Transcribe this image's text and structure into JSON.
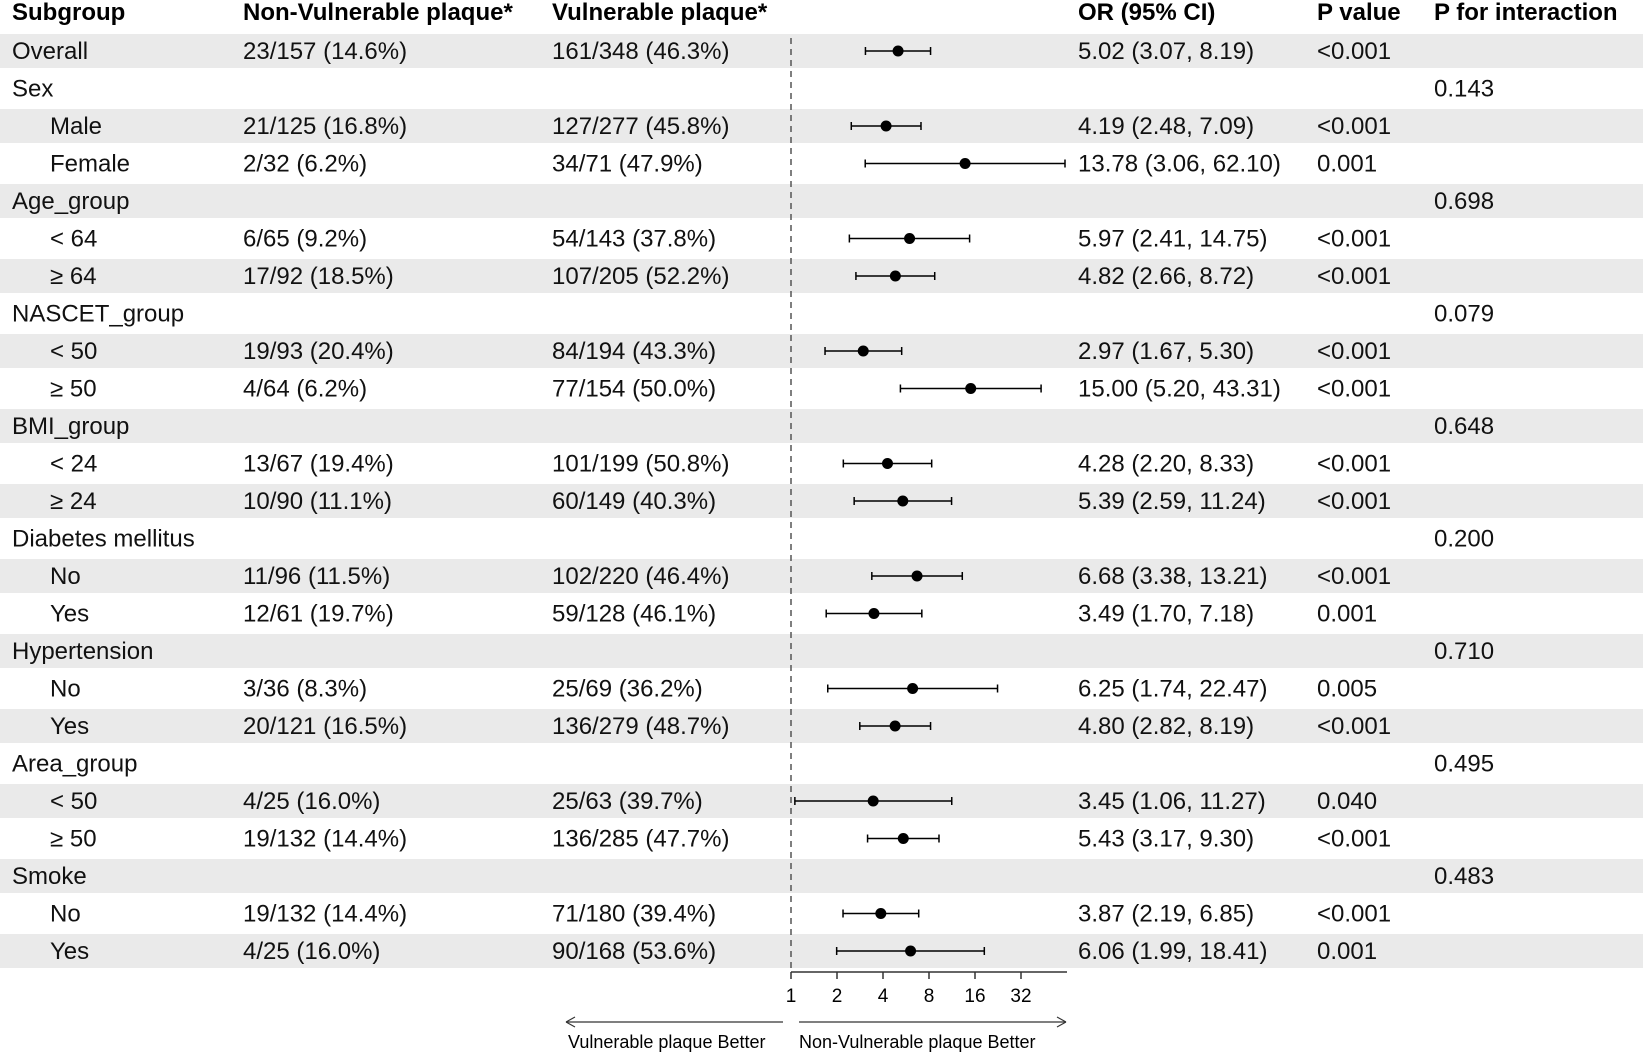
{
  "chart_data": {
    "type": "forest",
    "headers": {
      "subgroup": "Subgroup",
      "non_vulnerable": "Non-Vulnerable plaque*",
      "vulnerable": "Vulnerable plaque*",
      "or_ci": "OR (95% CI)",
      "p_value": "P value",
      "p_interaction": "P for interaction"
    },
    "rows": [
      {
        "label": "Overall",
        "indent": false,
        "nonvul": "23/157 (14.6%)",
        "vul": "161/348 (46.3%)",
        "or": 5.02,
        "lo": 3.07,
        "hi": 8.19,
        "or_text": "5.02 (3.07, 8.19)",
        "p": "<0.001",
        "p_int": ""
      },
      {
        "label": "Sex",
        "indent": false,
        "p_int": "0.143"
      },
      {
        "label": "Male",
        "indent": true,
        "nonvul": "21/125 (16.8%)",
        "vul": "127/277 (45.8%)",
        "or": 4.19,
        "lo": 2.48,
        "hi": 7.09,
        "or_text": "4.19 (2.48, 7.09)",
        "p": "<0.001",
        "p_int": ""
      },
      {
        "label": "Female",
        "indent": true,
        "nonvul": "2/32 (6.2%)",
        "vul": "34/71 (47.9%)",
        "or": 13.78,
        "lo": 3.06,
        "hi": 62.1,
        "or_text": "13.78 (3.06, 62.10)",
        "p": "0.001",
        "p_int": ""
      },
      {
        "label": "Age_group",
        "indent": false,
        "p_int": "0.698"
      },
      {
        "label": "< 64",
        "indent": true,
        "nonvul": "6/65 (9.2%)",
        "vul": "54/143 (37.8%)",
        "or": 5.97,
        "lo": 2.41,
        "hi": 14.75,
        "or_text": "5.97 (2.41, 14.75)",
        "p": "<0.001",
        "p_int": ""
      },
      {
        "label": "≥ 64",
        "indent": true,
        "nonvul": "17/92 (18.5%)",
        "vul": "107/205 (52.2%)",
        "or": 4.82,
        "lo": 2.66,
        "hi": 8.72,
        "or_text": "4.82 (2.66, 8.72)",
        "p": "<0.001",
        "p_int": ""
      },
      {
        "label": "NASCET_group",
        "indent": false,
        "p_int": "0.079"
      },
      {
        "label": "< 50",
        "indent": true,
        "nonvul": "19/93 (20.4%)",
        "vul": "84/194 (43.3%)",
        "or": 2.97,
        "lo": 1.67,
        "hi": 5.3,
        "or_text": "2.97 (1.67, 5.30)",
        "p": "<0.001",
        "p_int": ""
      },
      {
        "label": "≥ 50",
        "indent": true,
        "nonvul": "4/64 (6.2%)",
        "vul": "77/154 (50.0%)",
        "or": 15.0,
        "lo": 5.2,
        "hi": 43.31,
        "or_text": "15.00 (5.20, 43.31)",
        "p": "<0.001",
        "p_int": ""
      },
      {
        "label": "BMI_group",
        "indent": false,
        "p_int": "0.648"
      },
      {
        "label": "< 24",
        "indent": true,
        "nonvul": "13/67 (19.4%)",
        "vul": "101/199 (50.8%)",
        "or": 4.28,
        "lo": 2.2,
        "hi": 8.33,
        "or_text": "4.28 (2.20, 8.33)",
        "p": "<0.001",
        "p_int": ""
      },
      {
        "label": "≥ 24",
        "indent": true,
        "nonvul": "10/90 (11.1%)",
        "vul": "60/149 (40.3%)",
        "or": 5.39,
        "lo": 2.59,
        "hi": 11.24,
        "or_text": "5.39 (2.59, 11.24)",
        "p": "<0.001",
        "p_int": ""
      },
      {
        "label": "Diabetes mellitus",
        "indent": false,
        "p_int": "0.200"
      },
      {
        "label": "No",
        "indent": true,
        "nonvul": "11/96 (11.5%)",
        "vul": "102/220 (46.4%)",
        "or": 6.68,
        "lo": 3.38,
        "hi": 13.21,
        "or_text": "6.68 (3.38, 13.21)",
        "p": "<0.001",
        "p_int": ""
      },
      {
        "label": "Yes",
        "indent": true,
        "nonvul": "12/61 (19.7%)",
        "vul": "59/128 (46.1%)",
        "or": 3.49,
        "lo": 1.7,
        "hi": 7.18,
        "or_text": "3.49 (1.70, 7.18)",
        "p": "0.001",
        "p_int": ""
      },
      {
        "label": "Hypertension",
        "indent": false,
        "p_int": "0.710"
      },
      {
        "label": "No",
        "indent": true,
        "nonvul": "3/36 (8.3%)",
        "vul": "25/69 (36.2%)",
        "or": 6.25,
        "lo": 1.74,
        "hi": 22.47,
        "or_text": "6.25 (1.74, 22.47)",
        "p": "0.005",
        "p_int": ""
      },
      {
        "label": "Yes",
        "indent": true,
        "nonvul": "20/121 (16.5%)",
        "vul": "136/279 (48.7%)",
        "or": 4.8,
        "lo": 2.82,
        "hi": 8.19,
        "or_text": "4.80 (2.82, 8.19)",
        "p": "<0.001",
        "p_int": ""
      },
      {
        "label": "Area_group",
        "indent": false,
        "p_int": "0.495"
      },
      {
        "label": "< 50",
        "indent": true,
        "nonvul": "4/25 (16.0%)",
        "vul": "25/63 (39.7%)",
        "or": 3.45,
        "lo": 1.06,
        "hi": 11.27,
        "or_text": "3.45 (1.06, 11.27)",
        "p": "0.040",
        "p_int": ""
      },
      {
        "label": "≥ 50",
        "indent": true,
        "nonvul": "19/132 (14.4%)",
        "vul": "136/285 (47.7%)",
        "or": 5.43,
        "lo": 3.17,
        "hi": 9.3,
        "or_text": "5.43 (3.17, 9.30)",
        "p": "<0.001",
        "p_int": ""
      },
      {
        "label": "Smoke",
        "indent": false,
        "p_int": "0.483"
      },
      {
        "label": "No",
        "indent": true,
        "nonvul": "19/132 (14.4%)",
        "vul": "71/180 (39.4%)",
        "or": 3.87,
        "lo": 2.19,
        "hi": 6.85,
        "or_text": "3.87 (2.19, 6.85)",
        "p": "<0.001",
        "p_int": ""
      },
      {
        "label": "Yes",
        "indent": true,
        "nonvul": "4/25 (16.0%)",
        "vul": "90/168 (53.6%)",
        "or": 6.06,
        "lo": 1.99,
        "hi": 18.41,
        "or_text": "6.06 (1.99, 18.41)",
        "p": "0.001",
        "p_int": ""
      }
    ],
    "x_axis": {
      "scale": "log2",
      "ticks": [
        1,
        2,
        4,
        8,
        16,
        32
      ],
      "tick_labels": [
        "1",
        "2",
        "4",
        "8",
        "16",
        "32"
      ],
      "reference_line": 1
    },
    "direction_labels": {
      "left": "Vulnerable plaque Better",
      "right": "Non-Vulnerable plaque Better"
    },
    "colors": {
      "stripe": "#eaeaea",
      "point": "#000000",
      "text": "#111111"
    }
  }
}
